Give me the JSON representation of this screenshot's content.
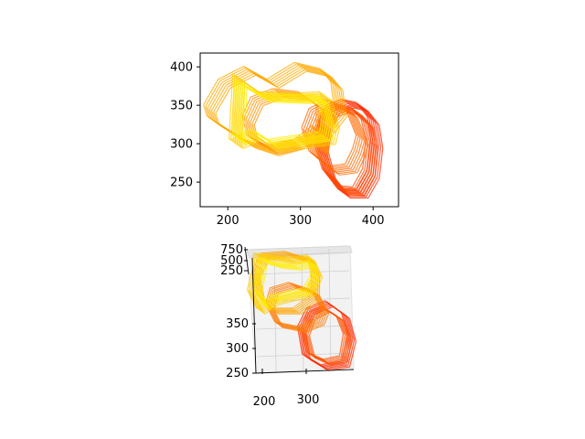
{
  "chart_data": [
    {
      "type": "line",
      "title": "",
      "xlabel": "",
      "ylabel": "",
      "xlim": [
        162,
        435
      ],
      "ylim": [
        218,
        418
      ],
      "x_ticks": [
        200,
        300,
        400
      ],
      "y_ticks": [
        250,
        300,
        350,
        400
      ],
      "color_map": "autumn (red to yellow)",
      "series": [
        {
          "x": [
            405,
            400,
            385,
            365,
            345,
            335,
            330,
            340,
            360,
            385,
            400,
            405
          ],
          "y": [
            300,
            330,
            348,
            352,
            345,
            325,
            295,
            260,
            235,
            235,
            260,
            300
          ],
          "color": "#ff2a00"
        },
        {
          "x": [
            398,
            392,
            377,
            358,
            340,
            332,
            328,
            338,
            357,
            380,
            394,
            398
          ],
          "y": [
            300,
            326,
            342,
            346,
            340,
            320,
            292,
            262,
            240,
            238,
            262,
            300
          ],
          "color": "#ff4a00"
        },
        {
          "x": [
            385,
            370,
            345,
            320,
            310,
            320,
            345,
            370,
            380,
            385
          ],
          "y": [
            305,
            340,
            352,
            340,
            315,
            285,
            265,
            268,
            288,
            305
          ],
          "color": "#ff6a00"
        },
        {
          "x": [
            330,
            330,
            305,
            270,
            240,
            228,
            235,
            262,
            300,
            325,
            330
          ],
          "y": [
            290,
            345,
            362,
            366,
            355,
            330,
            305,
            292,
            300,
            318,
            290
          ],
          "color": "#ff9000"
        },
        {
          "x": [
            175,
            195,
            230,
            262,
            300,
            335,
            350,
            355,
            330,
            300,
            262,
            230,
            200,
            180,
            175
          ],
          "y": [
            345,
            378,
            395,
            378,
            400,
            392,
            375,
            340,
            310,
            300,
            290,
            300,
            318,
            330,
            345
          ],
          "color": "#ffa800"
        },
        {
          "x": [
            210,
            215,
            250,
            300,
            335,
            345,
            340,
            300,
            262,
            238,
            215,
            210
          ],
          "y": [
            300,
            385,
            362,
            360,
            362,
            325,
            305,
            300,
            295,
            310,
            300,
            300
          ],
          "color": "#ffcc00"
        },
        {
          "x": [
            215,
            218,
            250,
            300,
            330,
            338,
            335,
            300,
            262,
            240,
            220,
            215
          ],
          "y": [
            305,
            378,
            360,
            358,
            358,
            328,
            310,
            305,
            300,
            314,
            305,
            305
          ],
          "color": "#ffee00"
        }
      ]
    },
    {
      "type": "line",
      "title": "",
      "xlabel": "",
      "ylabel": "",
      "zlabel": "",
      "projection": "3d",
      "x_ticks": [
        200,
        300
      ],
      "y_ticks": [
        250,
        300,
        350
      ],
      "z_ticks": [
        250,
        500,
        750
      ],
      "color_map": "autumn (red to yellow)"
    }
  ]
}
